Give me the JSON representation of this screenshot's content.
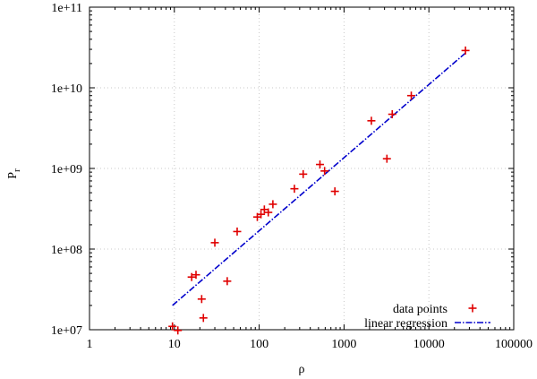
{
  "chart_data": {
    "type": "scatter",
    "title": "",
    "xlabel": "ρ",
    "ylabel": "P_r",
    "xscale": "log",
    "yscale": "log",
    "xlim": [
      1,
      100000
    ],
    "ylim": [
      10000000,
      100000000000
    ],
    "grid": true,
    "xticks": [
      1,
      10,
      100,
      1000,
      10000,
      100000
    ],
    "xtick_labels": [
      "1",
      "10",
      "100",
      "1000",
      "10000",
      "100000"
    ],
    "yticks": [
      10000000,
      100000000,
      1000000000,
      10000000000,
      100000000000
    ],
    "ytick_labels": [
      "1e+07",
      "1e+08",
      "1e+09",
      "1e+10",
      "1e+11"
    ],
    "legend_position": "bottom-right",
    "series": [
      {
        "name": "data points",
        "marker": "+",
        "color": "#e00000",
        "points": [
          {
            "x": 9.5,
            "y": 11000000
          },
          {
            "x": 11,
            "y": 9800000
          },
          {
            "x": 16,
            "y": 45000000
          },
          {
            "x": 18,
            "y": 48000000
          },
          {
            "x": 21,
            "y": 24000000
          },
          {
            "x": 22,
            "y": 14000000
          },
          {
            "x": 30,
            "y": 120000000
          },
          {
            "x": 42,
            "y": 40000000
          },
          {
            "x": 55,
            "y": 165000000
          },
          {
            "x": 95,
            "y": 250000000
          },
          {
            "x": 105,
            "y": 270000000
          },
          {
            "x": 115,
            "y": 310000000
          },
          {
            "x": 128,
            "y": 285000000
          },
          {
            "x": 145,
            "y": 360000000
          },
          {
            "x": 260,
            "y": 560000000
          },
          {
            "x": 330,
            "y": 850000000
          },
          {
            "x": 520,
            "y": 1120000000
          },
          {
            "x": 590,
            "y": 930000000
          },
          {
            "x": 780,
            "y": 520000000
          },
          {
            "x": 2100,
            "y": 3900000000
          },
          {
            "x": 3200,
            "y": 1320000000
          },
          {
            "x": 3700,
            "y": 4700000000
          },
          {
            "x": 6200,
            "y": 8000000000
          },
          {
            "x": 27000,
            "y": 29000000000
          }
        ]
      },
      {
        "name": "linear regression",
        "style": "dash-dot",
        "color": "#0000cc",
        "x": [
          9.5,
          27000
        ],
        "y": [
          20000000,
          27000000000
        ]
      }
    ]
  }
}
